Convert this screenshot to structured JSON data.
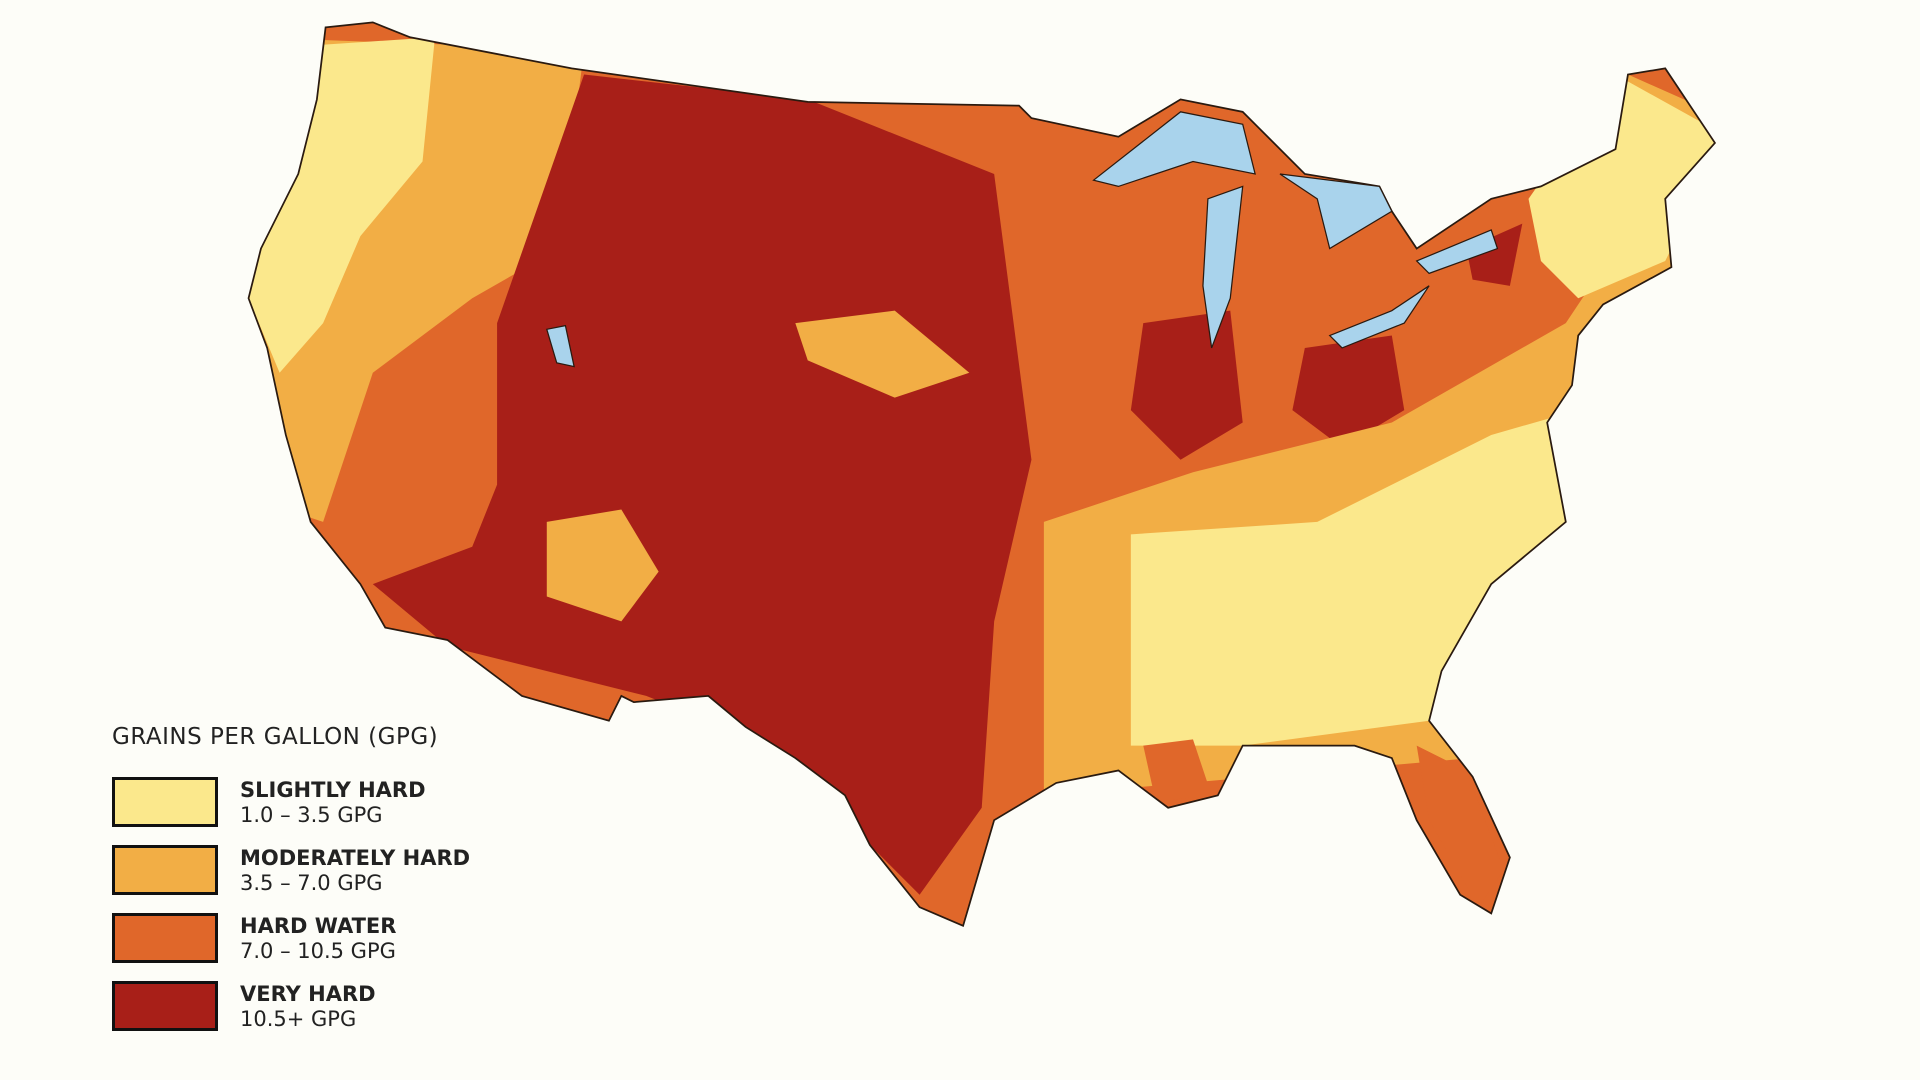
{
  "legend": {
    "title": "GRAINS PER GALLON (GPG)",
    "items": [
      {
        "label": "SLIGHTLY HARD",
        "range": "1.0 – 3.5 GPG",
        "color": "#fbe88c"
      },
      {
        "label": "MODERATELY HARD",
        "range": "3.5 – 7.0 GPG",
        "color": "#f2ae45"
      },
      {
        "label": "HARD WATER",
        "range": "7.0 – 10.5 GPG",
        "color": "#e0672a"
      },
      {
        "label": "VERY HARD",
        "range": "10.5+ GPG",
        "color": "#a81f18"
      }
    ]
  }
}
